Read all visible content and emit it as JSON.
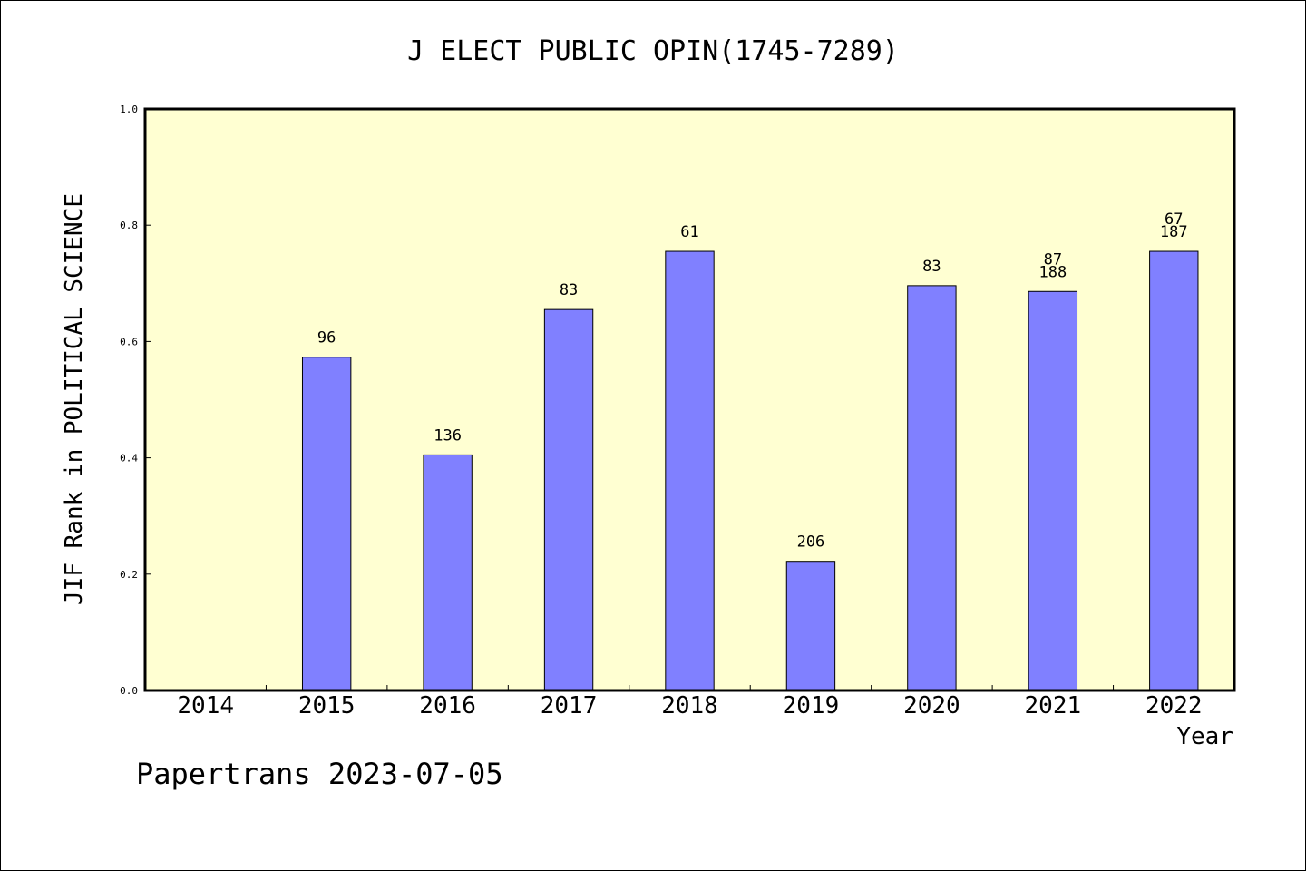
{
  "chart_data": {
    "type": "bar",
    "title": "J ELECT PUBLIC OPIN(1745-7289)",
    "xlabel": "Year",
    "ylabel": "JIF Rank in POLITICAL SCIENCE",
    "ylim": [
      0,
      1.0
    ],
    "yticks": [
      "0.0",
      "0.2",
      "0.4",
      "0.6",
      "0.8",
      "1.0"
    ],
    "categories": [
      "2014",
      "2015",
      "2016",
      "2017",
      "2018",
      "2019",
      "2020",
      "2021",
      "2022"
    ],
    "values": [
      null,
      0.573,
      0.405,
      0.655,
      0.755,
      0.222,
      0.696,
      0.686,
      0.755
    ],
    "labels": [
      [],
      [
        "96"
      ],
      [
        "136"
      ],
      [
        "83"
      ],
      [
        "61"
      ],
      [
        "206"
      ],
      [
        "83"
      ],
      [
        "87",
        "188"
      ],
      [
        "67",
        "187"
      ]
    ],
    "colors": {
      "plot_background": "#ffffd2",
      "bar": "#8080ff"
    },
    "grid": false,
    "legend": "none"
  },
  "footer": {
    "text": "Papertrans 2023-07-05"
  }
}
